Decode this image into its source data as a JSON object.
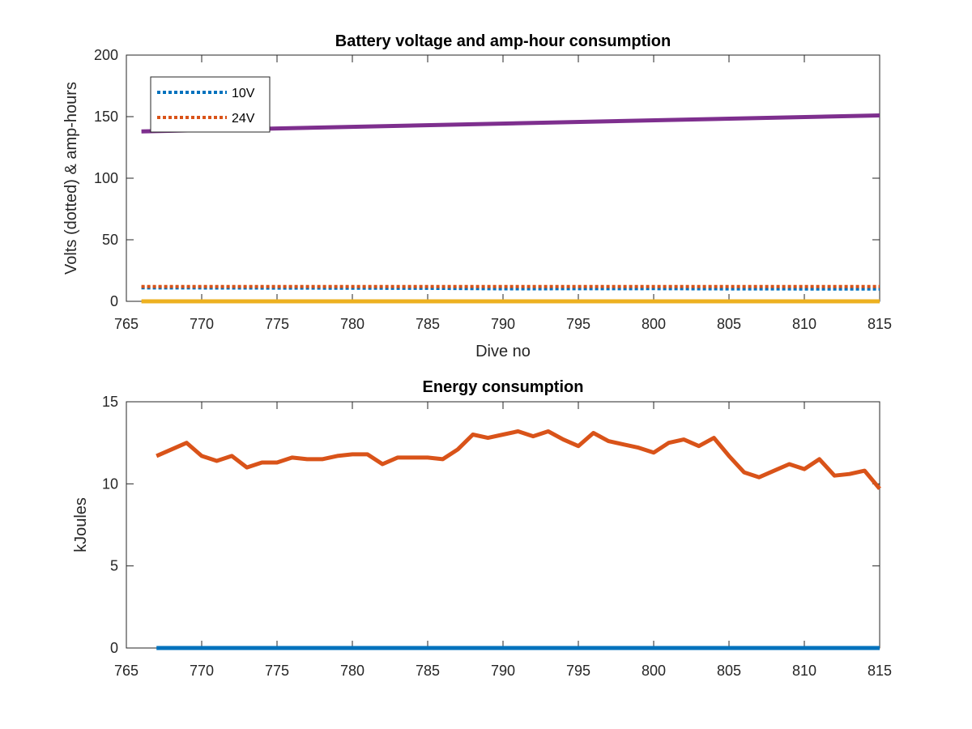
{
  "chart_data": [
    {
      "type": "line",
      "title": "Battery voltage and amp-hour consumption",
      "xlabel": "Dive no",
      "ylabel": "Volts (dotted) & amp-hours",
      "xlim": [
        765,
        815
      ],
      "ylim": [
        0,
        200
      ],
      "xticks": [
        765,
        770,
        775,
        780,
        785,
        790,
        795,
        800,
        805,
        810,
        815
      ],
      "yticks": [
        0,
        50,
        100,
        150,
        200
      ],
      "grid": false,
      "legend": {
        "position": "top-left",
        "entries": [
          "10V",
          "24V"
        ]
      },
      "series": [
        {
          "name": "10V",
          "style": "dotted",
          "color": "#0072BD",
          "x": [
            766,
            775,
            785,
            790,
            800,
            805,
            815
          ],
          "y": [
            11,
            10.8,
            10.6,
            10.2,
            10.3,
            10.1,
            10
          ]
        },
        {
          "name": "24V",
          "style": "dotted",
          "color": "#D95319",
          "x": [
            766,
            775,
            785,
            795,
            805,
            815
          ],
          "y": [
            12,
            12,
            12,
            12,
            12,
            12
          ]
        },
        {
          "style": "solid",
          "color": "#7E2F8E",
          "x": [
            766,
            815
          ],
          "y": [
            138,
            151
          ]
        },
        {
          "style": "solid",
          "color": "#EDB120",
          "x": [
            766,
            815
          ],
          "y": [
            0,
            0
          ]
        }
      ]
    },
    {
      "type": "line",
      "title": "Energy consumption",
      "xlabel": "",
      "ylabel": "kJoules",
      "xlim": [
        765,
        815
      ],
      "ylim": [
        0,
        15
      ],
      "xticks": [
        765,
        770,
        775,
        780,
        785,
        790,
        795,
        800,
        805,
        810,
        815
      ],
      "yticks": [
        0,
        5,
        10,
        15
      ],
      "grid": false,
      "series": [
        {
          "style": "solid",
          "color": "#D95319",
          "x": [
            767,
            768,
            769,
            770,
            771,
            772,
            773,
            774,
            775,
            776,
            777,
            778,
            779,
            780,
            781,
            782,
            783,
            784,
            785,
            786,
            787,
            788,
            789,
            790,
            791,
            792,
            793,
            794,
            795,
            796,
            797,
            798,
            799,
            800,
            801,
            802,
            803,
            804,
            805,
            806,
            807,
            808,
            809,
            810,
            811,
            812,
            813,
            814,
            815
          ],
          "y": [
            11.7,
            12.1,
            12.5,
            11.7,
            11.4,
            11.7,
            11.0,
            11.3,
            11.3,
            11.6,
            11.5,
            11.5,
            11.7,
            11.8,
            11.8,
            11.2,
            11.6,
            11.6,
            11.6,
            11.5,
            12.1,
            13.0,
            12.8,
            13.0,
            13.2,
            12.9,
            13.2,
            12.7,
            12.3,
            13.1,
            12.6,
            12.4,
            12.2,
            11.9,
            12.5,
            12.7,
            12.3,
            12.8,
            11.7,
            10.7,
            10.4,
            10.8,
            11.2,
            10.9,
            11.5,
            10.5,
            10.6,
            10.8,
            9.7
          ]
        },
        {
          "style": "solid",
          "color": "#0072BD",
          "x": [
            767,
            815
          ],
          "y": [
            0,
            0
          ]
        }
      ]
    }
  ]
}
